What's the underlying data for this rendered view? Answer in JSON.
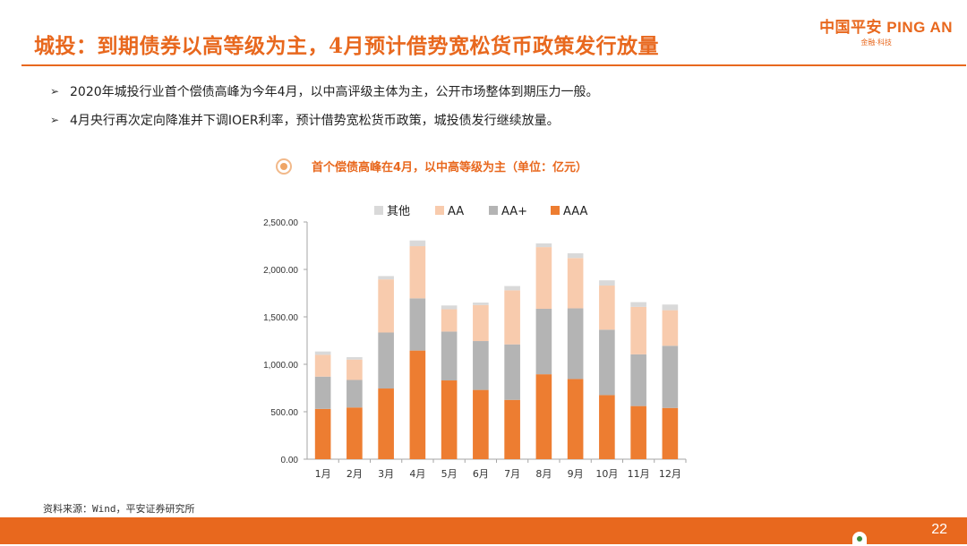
{
  "header": {
    "title": "城投：到期债券以高等级为主，4月预计借势宽松货币政策发行放量",
    "logo_text": "中国平安 PING AN",
    "logo_sub": "金融·科技"
  },
  "bullets": [
    "2020年城投行业首个偿债高峰为今年4月，以中高评级主体为主，公开市场整体到期压力一般。",
    "4月央行再次定向降准并下调IOER利率，预计借势宽松货币政策，城投债发行继续放量。"
  ],
  "chart_title": "首个偿债高峰在4月，以中高等级为主（单位：亿元）",
  "chart_data": {
    "type": "bar",
    "stacked": true,
    "categories": [
      "1月",
      "2月",
      "3月",
      "4月",
      "5月",
      "6月",
      "7月",
      "8月",
      "9月",
      "10月",
      "11月",
      "12月"
    ],
    "series": [
      {
        "name": "AAA",
        "color": "#ED7D31",
        "values": [
          530,
          545,
          745,
          1145,
          830,
          730,
          625,
          895,
          845,
          675,
          560,
          540
        ]
      },
      {
        "name": "AA+",
        "color": "#B4B4B4",
        "values": [
          340,
          290,
          590,
          550,
          515,
          515,
          585,
          690,
          745,
          690,
          545,
          655
        ]
      },
      {
        "name": "AA",
        "color": "#F8CBAD",
        "values": [
          230,
          215,
          560,
          550,
          235,
          380,
          570,
          650,
          530,
          465,
          500,
          375
        ]
      },
      {
        "name": "其他",
        "color": "#D9D9D9",
        "values": [
          35,
          25,
          35,
          60,
          40,
          25,
          45,
          40,
          50,
          55,
          50,
          60
        ]
      }
    ],
    "legend_order": [
      "其他",
      "AA",
      "AA+",
      "AAA"
    ],
    "legend_position": "top",
    "ylim": [
      0,
      2500
    ],
    "yticks": [
      "0.00",
      "500.00",
      "1,000.00",
      "1,500.00",
      "2,000.00",
      "2,500.00"
    ],
    "grid": false
  },
  "source": "资料来源：Wind，平安证券研究所",
  "page_number": "22"
}
